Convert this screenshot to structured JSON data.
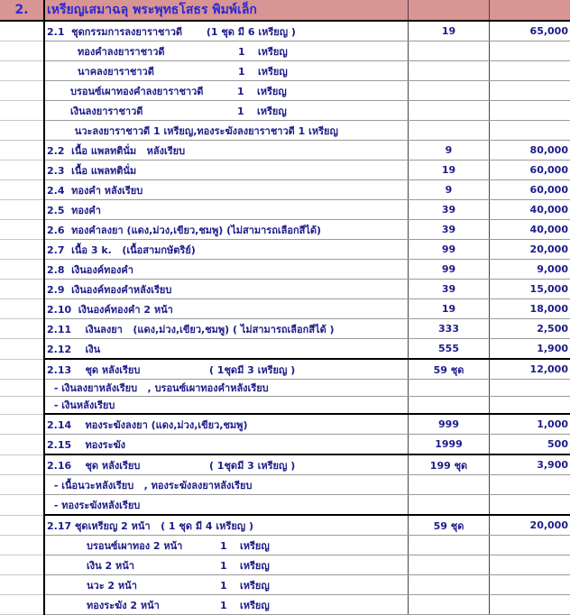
{
  "header": {
    "number": "2.",
    "title": "เหรียญเสมาฉลุ พระพุทธโสธร พิมพ์เล็ก",
    "header_color": "#d99594"
  },
  "rows": [
    {
      "kind": "item",
      "label": "2.1  ชุดกรรมการลงยาราชาวดี       (1 ชุด มี 6 เหรียญ )",
      "qty": "19",
      "price": "65,000"
    },
    {
      "kind": "sub",
      "style": "s1",
      "name": "ทองคำลงยาราชาวดี",
      "count": "1",
      "unit": "เหรียญ"
    },
    {
      "kind": "sub",
      "style": "s1",
      "name": "นาคลงยาราชาวดี",
      "count": "1",
      "unit": "เหรียญ"
    },
    {
      "kind": "sub",
      "style": "s2",
      "name": "บรอนซ์เผาทองคำลงยาราชาวดี",
      "count": "1",
      "unit": "เหรียญ"
    },
    {
      "kind": "sub",
      "style": "s2",
      "name": "เงินลงยาราชาวดี",
      "count": "1",
      "unit": "เหรียญ"
    },
    {
      "kind": "note",
      "label": "       นวะลงยาราชาวดี 1 เหรียญ,ทองระฆังลงยาราชาวดี 1 เหรียญ"
    },
    {
      "kind": "item",
      "label": "2.2  เนื้อ แพลทตินั่ม   หลังเรียบ",
      "qty": "9",
      "price": "80,000"
    },
    {
      "kind": "item",
      "label": "2.3  เนื้อ แพลทตินั่ม",
      "qty": "19",
      "price": "60,000"
    },
    {
      "kind": "item",
      "label": "2.4  ทองคำ หลังเรียบ",
      "qty": "9",
      "price": "60,000"
    },
    {
      "kind": "item",
      "label": "2.5  ทองคำ",
      "qty": "39",
      "price": "40,000"
    },
    {
      "kind": "item",
      "label": "2.6  ทองคำลงยา (แดง,ม่วง,เขียว,ชมพู) (ไม่สามารถเลือกสีได้)",
      "qty": "39",
      "price": "40,000"
    },
    {
      "kind": "item",
      "label": "2.7  เนื้อ 3 k.   (เนื้อสามกษัตริย์)",
      "qty": "99",
      "price": "20,000"
    },
    {
      "kind": "item",
      "label": "2.8  เงินองค์ทองคำ",
      "qty": "99",
      "price": "9,000"
    },
    {
      "kind": "item",
      "label": "2.9  เงินองค์ทองคำหลังเรียบ",
      "qty": "39",
      "price": "15,000"
    },
    {
      "kind": "item",
      "label": "2.10  เงินองค์ทองคำ 2 หน้า",
      "qty": "19",
      "price": "18,000"
    },
    {
      "kind": "item",
      "label": "2.11    เงินลงยา   (แดง,ม่วง,เขียว,ชมพู) ( ไม่สามารถเลือกสีได้ )",
      "qty": "333",
      "price": "2,500"
    },
    {
      "kind": "item",
      "label": "2.12    เงิน",
      "qty": "555",
      "price": "1,900"
    },
    {
      "kind": "group",
      "label": "2.13    ชุด หลังเรียบ                    ( 1ชุดมี 3 เหรียญ )",
      "qty": "59 ชุด",
      "price": "12,000"
    },
    {
      "kind": "shortnote",
      "label": " - เงินลงยาหลังเรียบ   , บรอนซ์เผาทองคำหลังเรียบ"
    },
    {
      "kind": "shortnote",
      "label": " - เงินหลังเรียบ"
    },
    {
      "kind": "group",
      "label": "2.14    ทองระฆังลงยา (แดง,ม่วง,เขียว,ชมพู)",
      "qty": "999",
      "price": "1,000"
    },
    {
      "kind": "item",
      "label": "2.15    ทองระฆัง",
      "qty": "1999",
      "price": "500"
    },
    {
      "kind": "group",
      "label": "2.16    ชุด หลังเรียบ                    ( 1ชุดมี 3 เหรียญ )",
      "qty": "199 ชุด",
      "price": "3,900"
    },
    {
      "kind": "note",
      "label": " - เนื้อนวะหลังเรียบ   , ทองระฆังลงยาหลังเรียบ"
    },
    {
      "kind": "note",
      "label": " - ทองระฆังหลังเรียบ"
    },
    {
      "kind": "group",
      "label": "2.17 ชุดเหรียญ 2 หน้า   ( 1 ชุด มี 4 เหรียญ )",
      "qty": "59 ชุด",
      "price": "20,000"
    },
    {
      "kind": "sub",
      "style": "s4",
      "name": "บรอนซ์เผาทอง 2 หน้า",
      "count": "1",
      "unit": "เหรียญ"
    },
    {
      "kind": "sub",
      "style": "s4",
      "name": "เงิน 2 หน้า",
      "count": "1",
      "unit": "เหรียญ"
    },
    {
      "kind": "sub",
      "style": "s4",
      "name": "นวะ 2 หน้า",
      "count": "1",
      "unit": "เหรียญ"
    },
    {
      "kind": "sub",
      "style": "s4",
      "name": "ทองระฆัง 2 หน้า",
      "count": "1",
      "unit": "เหรียญ"
    }
  ]
}
